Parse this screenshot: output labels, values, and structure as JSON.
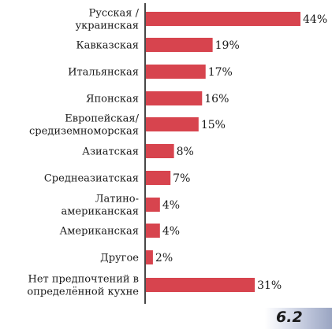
{
  "figure_number": "6.2",
  "chart_data": {
    "type": "bar",
    "orientation": "horizontal",
    "categories": [
      [
        "Русская /",
        "украинская"
      ],
      [
        "Кавказская"
      ],
      [
        "Итальянская"
      ],
      [
        "Японская"
      ],
      [
        "Европейская/",
        "средиземноморская"
      ],
      [
        "Азиатская"
      ],
      [
        "Среднеазиатская"
      ],
      [
        "Латино-",
        "американская"
      ],
      [
        "Американская"
      ],
      [
        "Другое"
      ],
      [
        "Нет предпочтений в",
        "определённой кухне"
      ]
    ],
    "values": [
      44,
      19,
      17,
      16,
      15,
      8,
      7,
      4,
      4,
      2,
      31
    ],
    "value_suffix": "%",
    "xlim": [
      0,
      44
    ],
    "grid": false,
    "legend": "none",
    "bar_color": "#d7444e"
  }
}
